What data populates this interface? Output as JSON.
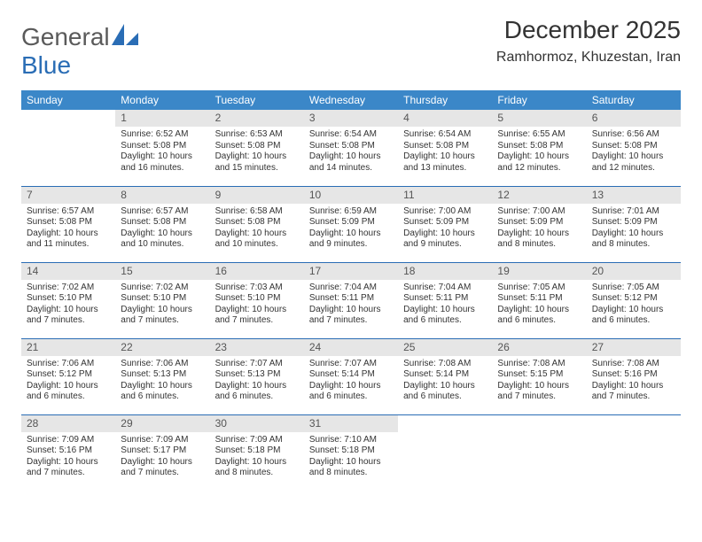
{
  "brand": {
    "name_part1": "General",
    "name_part2": "Blue",
    "color_primary": "#2a6db5",
    "header_bg": "#3b87c8"
  },
  "title": "December 2025",
  "location": "Ramhormoz, Khuzestan, Iran",
  "weekdays": [
    "Sunday",
    "Monday",
    "Tuesday",
    "Wednesday",
    "Thursday",
    "Friday",
    "Saturday"
  ],
  "calendar_style": {
    "daynum_bg": "#e6e6e6",
    "border_color": "#2a6db5",
    "font_size_cell": 10,
    "font_size_header": 12,
    "font_size_title": 28,
    "font_size_location": 16
  },
  "weeks": [
    [
      {
        "day": "",
        "sunrise": "",
        "sunset": "",
        "daylight": ""
      },
      {
        "day": "1",
        "sunrise": "Sunrise: 6:52 AM",
        "sunset": "Sunset: 5:08 PM",
        "daylight": "Daylight: 10 hours and 16 minutes."
      },
      {
        "day": "2",
        "sunrise": "Sunrise: 6:53 AM",
        "sunset": "Sunset: 5:08 PM",
        "daylight": "Daylight: 10 hours and 15 minutes."
      },
      {
        "day": "3",
        "sunrise": "Sunrise: 6:54 AM",
        "sunset": "Sunset: 5:08 PM",
        "daylight": "Daylight: 10 hours and 14 minutes."
      },
      {
        "day": "4",
        "sunrise": "Sunrise: 6:54 AM",
        "sunset": "Sunset: 5:08 PM",
        "daylight": "Daylight: 10 hours and 13 minutes."
      },
      {
        "day": "5",
        "sunrise": "Sunrise: 6:55 AM",
        "sunset": "Sunset: 5:08 PM",
        "daylight": "Daylight: 10 hours and 12 minutes."
      },
      {
        "day": "6",
        "sunrise": "Sunrise: 6:56 AM",
        "sunset": "Sunset: 5:08 PM",
        "daylight": "Daylight: 10 hours and 12 minutes."
      }
    ],
    [
      {
        "day": "7",
        "sunrise": "Sunrise: 6:57 AM",
        "sunset": "Sunset: 5:08 PM",
        "daylight": "Daylight: 10 hours and 11 minutes."
      },
      {
        "day": "8",
        "sunrise": "Sunrise: 6:57 AM",
        "sunset": "Sunset: 5:08 PM",
        "daylight": "Daylight: 10 hours and 10 minutes."
      },
      {
        "day": "9",
        "sunrise": "Sunrise: 6:58 AM",
        "sunset": "Sunset: 5:08 PM",
        "daylight": "Daylight: 10 hours and 10 minutes."
      },
      {
        "day": "10",
        "sunrise": "Sunrise: 6:59 AM",
        "sunset": "Sunset: 5:09 PM",
        "daylight": "Daylight: 10 hours and 9 minutes."
      },
      {
        "day": "11",
        "sunrise": "Sunrise: 7:00 AM",
        "sunset": "Sunset: 5:09 PM",
        "daylight": "Daylight: 10 hours and 9 minutes."
      },
      {
        "day": "12",
        "sunrise": "Sunrise: 7:00 AM",
        "sunset": "Sunset: 5:09 PM",
        "daylight": "Daylight: 10 hours and 8 minutes."
      },
      {
        "day": "13",
        "sunrise": "Sunrise: 7:01 AM",
        "sunset": "Sunset: 5:09 PM",
        "daylight": "Daylight: 10 hours and 8 minutes."
      }
    ],
    [
      {
        "day": "14",
        "sunrise": "Sunrise: 7:02 AM",
        "sunset": "Sunset: 5:10 PM",
        "daylight": "Daylight: 10 hours and 7 minutes."
      },
      {
        "day": "15",
        "sunrise": "Sunrise: 7:02 AM",
        "sunset": "Sunset: 5:10 PM",
        "daylight": "Daylight: 10 hours and 7 minutes."
      },
      {
        "day": "16",
        "sunrise": "Sunrise: 7:03 AM",
        "sunset": "Sunset: 5:10 PM",
        "daylight": "Daylight: 10 hours and 7 minutes."
      },
      {
        "day": "17",
        "sunrise": "Sunrise: 7:04 AM",
        "sunset": "Sunset: 5:11 PM",
        "daylight": "Daylight: 10 hours and 7 minutes."
      },
      {
        "day": "18",
        "sunrise": "Sunrise: 7:04 AM",
        "sunset": "Sunset: 5:11 PM",
        "daylight": "Daylight: 10 hours and 6 minutes."
      },
      {
        "day": "19",
        "sunrise": "Sunrise: 7:05 AM",
        "sunset": "Sunset: 5:11 PM",
        "daylight": "Daylight: 10 hours and 6 minutes."
      },
      {
        "day": "20",
        "sunrise": "Sunrise: 7:05 AM",
        "sunset": "Sunset: 5:12 PM",
        "daylight": "Daylight: 10 hours and 6 minutes."
      }
    ],
    [
      {
        "day": "21",
        "sunrise": "Sunrise: 7:06 AM",
        "sunset": "Sunset: 5:12 PM",
        "daylight": "Daylight: 10 hours and 6 minutes."
      },
      {
        "day": "22",
        "sunrise": "Sunrise: 7:06 AM",
        "sunset": "Sunset: 5:13 PM",
        "daylight": "Daylight: 10 hours and 6 minutes."
      },
      {
        "day": "23",
        "sunrise": "Sunrise: 7:07 AM",
        "sunset": "Sunset: 5:13 PM",
        "daylight": "Daylight: 10 hours and 6 minutes."
      },
      {
        "day": "24",
        "sunrise": "Sunrise: 7:07 AM",
        "sunset": "Sunset: 5:14 PM",
        "daylight": "Daylight: 10 hours and 6 minutes."
      },
      {
        "day": "25",
        "sunrise": "Sunrise: 7:08 AM",
        "sunset": "Sunset: 5:14 PM",
        "daylight": "Daylight: 10 hours and 6 minutes."
      },
      {
        "day": "26",
        "sunrise": "Sunrise: 7:08 AM",
        "sunset": "Sunset: 5:15 PM",
        "daylight": "Daylight: 10 hours and 7 minutes."
      },
      {
        "day": "27",
        "sunrise": "Sunrise: 7:08 AM",
        "sunset": "Sunset: 5:16 PM",
        "daylight": "Daylight: 10 hours and 7 minutes."
      }
    ],
    [
      {
        "day": "28",
        "sunrise": "Sunrise: 7:09 AM",
        "sunset": "Sunset: 5:16 PM",
        "daylight": "Daylight: 10 hours and 7 minutes."
      },
      {
        "day": "29",
        "sunrise": "Sunrise: 7:09 AM",
        "sunset": "Sunset: 5:17 PM",
        "daylight": "Daylight: 10 hours and 7 minutes."
      },
      {
        "day": "30",
        "sunrise": "Sunrise: 7:09 AM",
        "sunset": "Sunset: 5:18 PM",
        "daylight": "Daylight: 10 hours and 8 minutes."
      },
      {
        "day": "31",
        "sunrise": "Sunrise: 7:10 AM",
        "sunset": "Sunset: 5:18 PM",
        "daylight": "Daylight: 10 hours and 8 minutes."
      },
      {
        "day": "",
        "sunrise": "",
        "sunset": "",
        "daylight": ""
      },
      {
        "day": "",
        "sunrise": "",
        "sunset": "",
        "daylight": ""
      },
      {
        "day": "",
        "sunrise": "",
        "sunset": "",
        "daylight": ""
      }
    ]
  ]
}
